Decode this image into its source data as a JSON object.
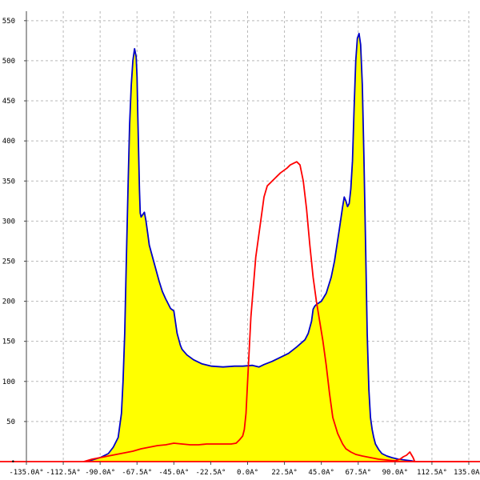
{
  "chart_data": {
    "type": "line",
    "title": "",
    "xlabel": "",
    "ylabel": "",
    "grid": true,
    "legend": "none",
    "xlim": [
      -135,
      135
    ],
    "ylim": [
      0,
      560
    ],
    "x_ticks": [
      -135.0,
      -112.5,
      -90.0,
      -67.5,
      -45.0,
      -22.5,
      0.0,
      22.5,
      45.0,
      67.5,
      90.0,
      112.5,
      135.0
    ],
    "x_tick_labels": [
      "-135.0A°",
      "-112.5A°",
      "-90.0A°",
      "-67.5A°",
      "-45.0A°",
      "-22.5A°",
      "0.0A°",
      "22.5A°",
      "45.0A°",
      "67.5A°",
      "90.0A°",
      "112.5A°",
      "135.0A°"
    ],
    "y_ticks": [
      50,
      100,
      150,
      200,
      250,
      300,
      350,
      400,
      450,
      500,
      550
    ],
    "y_tick_labels": [
      "50",
      "100",
      "150",
      "200",
      "250",
      "300",
      "350",
      "400",
      "450",
      "500",
      "550"
    ],
    "series": [
      {
        "color": "#0000c8",
        "fill": "#ffff00",
        "x": [
          -99,
          -95,
          -90,
          -85,
          -82,
          -79,
          -77,
          -76,
          -75,
          -74,
          -73,
          -72,
          -71,
          -70,
          -69,
          -68,
          -67.5,
          -67,
          -66,
          -65.5,
          -65,
          -64,
          -63,
          -62,
          -61,
          -60,
          -58,
          -56,
          -54,
          -52,
          -50,
          -48,
          -47,
          -45,
          -43,
          -41,
          -40,
          -37,
          -33,
          -28,
          -22,
          -15,
          -8,
          -3,
          3,
          7,
          10,
          15,
          20,
          25,
          30,
          35,
          37,
          39,
          40,
          41,
          42,
          45,
          48,
          51,
          53,
          56,
          58,
          59,
          60,
          61,
          62,
          63,
          64,
          65,
          66,
          67,
          68,
          69,
          70,
          71,
          72,
          73,
          74,
          75,
          76,
          77,
          78,
          80,
          82,
          85,
          88,
          92,
          96,
          100,
          102
        ],
        "y": [
          0,
          2,
          5,
          10,
          18,
          30,
          60,
          100,
          160,
          250,
          340,
          420,
          470,
          500,
          515,
          505,
          480,
          430,
          340,
          310,
          305,
          308,
          311,
          300,
          285,
          270,
          255,
          240,
          225,
          212,
          203,
          195,
          191,
          188,
          160,
          145,
          140,
          133,
          127,
          122,
          119,
          118,
          119,
          119,
          120,
          118,
          121,
          125,
          130,
          135,
          143,
          152,
          160,
          175,
          190,
          194,
          196,
          200,
          210,
          230,
          250,
          290,
          318,
          330,
          325,
          318,
          322,
          340,
          375,
          440,
          500,
          528,
          534,
          520,
          470,
          380,
          270,
          160,
          90,
          55,
          40,
          30,
          22,
          15,
          10,
          7,
          5,
          3,
          2,
          1,
          0
        ]
      },
      {
        "color": "#ff0000",
        "fill": "none",
        "x": [
          -100,
          -95,
          -90,
          -85,
          -80,
          -75,
          -70,
          -65,
          -60,
          -55,
          -50,
          -45,
          -40,
          -35,
          -30,
          -25,
          -20,
          -15,
          -10,
          -7,
          -5,
          -3,
          -2,
          -1,
          0,
          2,
          5,
          8,
          10,
          12,
          14,
          16,
          18,
          20,
          22,
          24,
          26,
          28,
          30,
          32,
          34,
          36,
          38,
          40,
          42,
          44,
          46,
          48,
          50,
          52,
          55,
          58,
          60,
          63,
          66,
          70,
          75,
          80,
          85,
          90,
          93,
          95,
          97,
          99,
          101,
          102,
          104,
          200
        ],
        "y": [
          0,
          3,
          5,
          7,
          9,
          11,
          13,
          16,
          18,
          20,
          21,
          23,
          22,
          21,
          21,
          22,
          22,
          22,
          22,
          23,
          27,
          32,
          40,
          60,
          100,
          180,
          255,
          300,
          330,
          344,
          348,
          352,
          356,
          360,
          363,
          366,
          370,
          372,
          374,
          370,
          350,
          315,
          270,
          230,
          200,
          175,
          150,
          120,
          85,
          55,
          35,
          22,
          16,
          12,
          9,
          7,
          5,
          3,
          2,
          1,
          3,
          6,
          8,
          12,
          5,
          0,
          0,
          0
        ]
      }
    ]
  }
}
